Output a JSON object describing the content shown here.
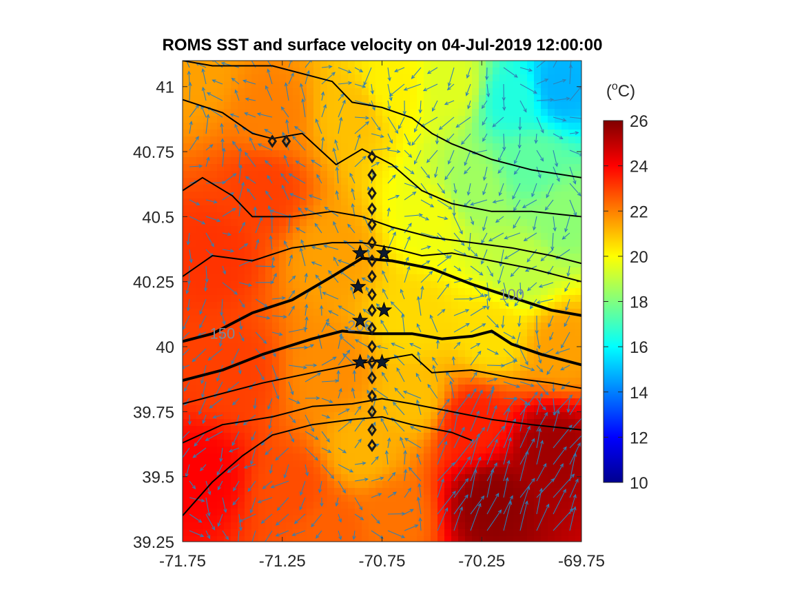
{
  "chart_data": {
    "type": "heatmap",
    "title": "ROMS SST and surface velocity on 04-Jul-2019 12:00:00",
    "xlim": [
      -71.75,
      -69.75
    ],
    "ylim": [
      39.25,
      41.1
    ],
    "x_ticks": [
      "-71.75",
      "-71.25",
      "-70.75",
      "-70.25",
      "-69.75"
    ],
    "x_tick_values": [
      -71.75,
      -71.25,
      -70.75,
      -70.25,
      -69.75
    ],
    "y_ticks": [
      "39.25",
      "39.5",
      "39.75",
      "40",
      "40.25",
      "40.5",
      "40.75",
      "41"
    ],
    "y_tick_values": [
      39.25,
      39.5,
      39.75,
      40,
      40.25,
      40.5,
      40.75,
      41
    ],
    "colorbar": {
      "unit_label": "(oC)",
      "range": [
        10,
        26
      ],
      "ticks": [
        "10",
        "12",
        "14",
        "16",
        "18",
        "20",
        "22",
        "24",
        "26"
      ],
      "tick_values": [
        10,
        12,
        14,
        16,
        18,
        20,
        22,
        24,
        26
      ],
      "colormap": "jet",
      "colors": [
        "#00008f",
        "#0000ff",
        "#0080ff",
        "#00ffff",
        "#80ff80",
        "#ffff00",
        "#ff8000",
        "#ff0000",
        "#800000"
      ]
    },
    "sst_anchors": [
      {
        "lon": -71.7,
        "lat": 41.05,
        "temp": 21.5
      },
      {
        "lon": -71.3,
        "lat": 40.9,
        "temp": 22.0
      },
      {
        "lon": -70.9,
        "lat": 40.9,
        "temp": 21.0
      },
      {
        "lon": -70.7,
        "lat": 41.0,
        "temp": 20.2
      },
      {
        "lon": -70.4,
        "lat": 41.0,
        "temp": 19.5
      },
      {
        "lon": -70.1,
        "lat": 40.95,
        "temp": 16.5
      },
      {
        "lon": -69.85,
        "lat": 41.0,
        "temp": 14.8
      },
      {
        "lon": -70.0,
        "lat": 40.7,
        "temp": 17.5
      },
      {
        "lon": -70.3,
        "lat": 40.6,
        "temp": 18.5
      },
      {
        "lon": -69.85,
        "lat": 40.5,
        "temp": 18.2
      },
      {
        "lon": -70.05,
        "lat": 40.3,
        "temp": 19.0
      },
      {
        "lon": -70.5,
        "lat": 40.5,
        "temp": 19.8
      },
      {
        "lon": -71.35,
        "lat": 40.6,
        "temp": 23.0
      },
      {
        "lon": -71.6,
        "lat": 40.35,
        "temp": 23.2
      },
      {
        "lon": -71.0,
        "lat": 40.35,
        "temp": 21.5
      },
      {
        "lon": -70.6,
        "lat": 40.1,
        "temp": 20.6
      },
      {
        "lon": -70.2,
        "lat": 40.05,
        "temp": 20.5
      },
      {
        "lon": -69.85,
        "lat": 40.0,
        "temp": 21.5
      },
      {
        "lon": -71.5,
        "lat": 39.9,
        "temp": 23.0
      },
      {
        "lon": -71.0,
        "lat": 39.9,
        "temp": 21.8
      },
      {
        "lon": -70.6,
        "lat": 39.8,
        "temp": 21.0
      },
      {
        "lon": -70.3,
        "lat": 39.7,
        "temp": 23.5
      },
      {
        "lon": -69.9,
        "lat": 39.6,
        "temp": 25.5
      },
      {
        "lon": -70.2,
        "lat": 39.4,
        "temp": 25.8
      },
      {
        "lon": -71.65,
        "lat": 39.5,
        "temp": 24.0
      },
      {
        "lon": -71.2,
        "lat": 39.45,
        "temp": 22.8
      },
      {
        "lon": -70.85,
        "lat": 39.6,
        "temp": 21.2
      },
      {
        "lon": -70.7,
        "lat": 39.35,
        "temp": 22.2
      },
      {
        "lon": -71.0,
        "lat": 39.3,
        "temp": 22.5
      }
    ],
    "contour_labels": [
      {
        "text": "100",
        "lon": -70.1,
        "lat": 40.18
      },
      {
        "text": "200",
        "lon": -70.86,
        "lat": 40.06
      },
      {
        "text": "150",
        "lon": -71.55,
        "lat": 40.03
      }
    ],
    "contours": [
      {
        "name": "contour-100",
        "bold": true,
        "points": [
          [
            -71.75,
            40.02
          ],
          [
            -71.6,
            40.05
          ],
          [
            -71.4,
            40.13
          ],
          [
            -71.2,
            40.18
          ],
          [
            -71.0,
            40.27
          ],
          [
            -70.85,
            40.34
          ],
          [
            -70.7,
            40.33
          ],
          [
            -70.5,
            40.3
          ],
          [
            -70.3,
            40.24
          ],
          [
            -70.1,
            40.19
          ],
          [
            -69.9,
            40.14
          ],
          [
            -69.75,
            40.12
          ]
        ]
      },
      {
        "name": "contour-200",
        "bold": true,
        "points": [
          [
            -71.75,
            39.87
          ],
          [
            -71.55,
            39.91
          ],
          [
            -71.35,
            39.97
          ],
          [
            -71.1,
            40.03
          ],
          [
            -70.95,
            40.06
          ],
          [
            -70.8,
            40.05
          ],
          [
            -70.6,
            40.05
          ],
          [
            -70.45,
            40.03
          ],
          [
            -70.3,
            40.04
          ],
          [
            -70.2,
            40.06
          ],
          [
            -70.1,
            40.01
          ],
          [
            -69.95,
            39.97
          ],
          [
            -69.75,
            39.93
          ]
        ]
      },
      {
        "name": "contour-a",
        "bold": false,
        "points": [
          [
            -71.75,
            41.1
          ],
          [
            -71.6,
            41.08
          ],
          [
            -71.3,
            41.08
          ],
          [
            -71.0,
            41.02
          ],
          [
            -70.9,
            40.94
          ],
          [
            -70.75,
            40.92
          ],
          [
            -70.6,
            40.88
          ],
          [
            -70.5,
            40.82
          ],
          [
            -70.4,
            40.78
          ],
          [
            -70.2,
            40.72
          ],
          [
            -70.0,
            40.68
          ],
          [
            -69.75,
            40.65
          ]
        ]
      },
      {
        "name": "contour-b",
        "bold": false,
        "points": [
          [
            -71.75,
            40.95
          ],
          [
            -71.55,
            40.9
          ],
          [
            -71.4,
            40.82
          ],
          [
            -71.3,
            40.8
          ],
          [
            -71.15,
            40.82
          ],
          [
            -70.98,
            40.7
          ],
          [
            -70.85,
            40.76
          ],
          [
            -70.7,
            40.7
          ],
          [
            -70.55,
            40.6
          ],
          [
            -70.4,
            40.55
          ],
          [
            -70.2,
            40.52
          ],
          [
            -70.0,
            40.52
          ],
          [
            -69.75,
            40.5
          ]
        ]
      },
      {
        "name": "contour-c",
        "bold": false,
        "points": [
          [
            -71.75,
            40.6
          ],
          [
            -71.65,
            40.65
          ],
          [
            -71.5,
            40.58
          ],
          [
            -71.4,
            40.5
          ],
          [
            -71.2,
            40.5
          ],
          [
            -71.0,
            40.52
          ],
          [
            -70.85,
            40.5
          ],
          [
            -70.7,
            40.46
          ],
          [
            -70.5,
            40.42
          ],
          [
            -70.3,
            40.4
          ],
          [
            -70.1,
            40.38
          ],
          [
            -69.9,
            40.35
          ],
          [
            -69.75,
            40.32
          ]
        ]
      },
      {
        "name": "contour-d",
        "bold": false,
        "points": [
          [
            -71.75,
            40.27
          ],
          [
            -71.6,
            40.35
          ],
          [
            -71.4,
            40.33
          ],
          [
            -71.2,
            40.38
          ],
          [
            -71.0,
            40.4
          ],
          [
            -70.85,
            40.4
          ],
          [
            -70.7,
            40.38
          ],
          [
            -70.55,
            40.35
          ],
          [
            -70.4,
            40.36
          ],
          [
            -70.2,
            40.33
          ],
          [
            -70.0,
            40.3
          ],
          [
            -69.75,
            40.25
          ]
        ]
      },
      {
        "name": "contour-e",
        "bold": false,
        "points": [
          [
            -71.75,
            39.78
          ],
          [
            -71.55,
            39.82
          ],
          [
            -71.35,
            39.86
          ],
          [
            -71.1,
            39.9
          ],
          [
            -70.9,
            39.93
          ],
          [
            -70.75,
            39.95
          ],
          [
            -70.6,
            39.97
          ],
          [
            -70.5,
            39.9
          ],
          [
            -70.3,
            39.91
          ],
          [
            -70.1,
            39.88
          ],
          [
            -69.9,
            39.86
          ],
          [
            -69.75,
            39.84
          ]
        ]
      },
      {
        "name": "contour-f",
        "bold": false,
        "points": [
          [
            -71.75,
            39.63
          ],
          [
            -71.55,
            39.7
          ],
          [
            -71.3,
            39.73
          ],
          [
            -71.1,
            39.77
          ],
          [
            -70.9,
            39.78
          ],
          [
            -70.75,
            39.8
          ],
          [
            -70.6,
            39.78
          ],
          [
            -70.4,
            39.75
          ],
          [
            -70.2,
            39.72
          ],
          [
            -70.0,
            39.7
          ],
          [
            -69.75,
            39.68
          ]
        ]
      },
      {
        "name": "contour-g",
        "bold": false,
        "points": [
          [
            -71.75,
            39.35
          ],
          [
            -71.6,
            39.48
          ],
          [
            -71.45,
            39.58
          ],
          [
            -71.3,
            39.66
          ],
          [
            -71.1,
            39.7
          ],
          [
            -70.9,
            39.72
          ],
          [
            -70.75,
            39.73
          ],
          [
            -70.6,
            39.7
          ],
          [
            -70.4,
            39.67
          ],
          [
            -70.3,
            39.64
          ]
        ]
      }
    ],
    "diamond_stations": [
      {
        "lon": -70.8,
        "lat": 40.73
      },
      {
        "lon": -70.8,
        "lat": 40.66
      },
      {
        "lon": -70.8,
        "lat": 40.59
      },
      {
        "lon": -70.8,
        "lat": 40.53
      },
      {
        "lon": -70.8,
        "lat": 40.47
      },
      {
        "lon": -70.8,
        "lat": 40.4
      },
      {
        "lon": -70.8,
        "lat": 40.33
      },
      {
        "lon": -70.8,
        "lat": 40.27
      },
      {
        "lon": -70.8,
        "lat": 40.2
      },
      {
        "lon": -70.8,
        "lat": 40.14
      },
      {
        "lon": -70.8,
        "lat": 40.07
      },
      {
        "lon": -70.8,
        "lat": 40.0
      },
      {
        "lon": -70.8,
        "lat": 39.94
      },
      {
        "lon": -70.8,
        "lat": 39.88
      },
      {
        "lon": -70.8,
        "lat": 39.81
      },
      {
        "lon": -70.8,
        "lat": 39.75
      },
      {
        "lon": -70.8,
        "lat": 39.68
      },
      {
        "lon": -70.8,
        "lat": 39.62
      },
      {
        "lon": -71.3,
        "lat": 40.79
      },
      {
        "lon": -71.23,
        "lat": 40.79
      }
    ],
    "star_stations": [
      {
        "lon": -70.86,
        "lat": 40.36
      },
      {
        "lon": -70.74,
        "lat": 40.36
      },
      {
        "lon": -70.87,
        "lat": 40.23
      },
      {
        "lon": -70.74,
        "lat": 40.14
      },
      {
        "lon": -70.86,
        "lat": 40.1
      },
      {
        "lon": -70.86,
        "lat": 39.94
      },
      {
        "lon": -70.75,
        "lat": 39.94
      }
    ]
  }
}
